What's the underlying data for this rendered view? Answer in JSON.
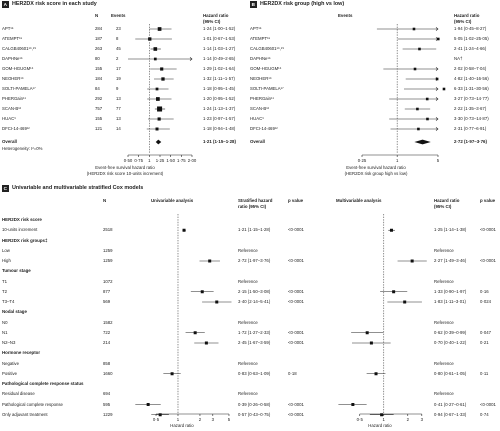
{
  "panelA": {
    "letter": "A",
    "title": "HER2DX risk score in each study",
    "col_n": "N",
    "col_events": "Events",
    "col_hr": "Hazard ratio",
    "col_ci": "(95% CI)",
    "rows": [
      {
        "study": "APT¹⁵",
        "n": "284",
        "events": "23",
        "hr_text": "1·24 (1·00–1·52)"
      },
      {
        "study": "ATEMPT¹⁵",
        "n": "187",
        "events": "8",
        "hr_text": "1·01 (0·67–1·53)"
      },
      {
        "study": "CALGB40601¹⁶,²⁹",
        "n": "263",
        "events": "45",
        "hr_text": "1·14 (1·03–1·27)"
      },
      {
        "study": "DAPHNe¹⁵",
        "n": "80",
        "events": "2",
        "hr_text": "1·14 (0·49–2·65)"
      },
      {
        "study": "GOM-HGUGM¹⁶",
        "n": "155",
        "events": "17",
        "hr_text": "1·29 (1·02–1·64)"
      },
      {
        "study": "NEOHER¹⁶",
        "n": "184",
        "events": "19",
        "hr_text": "1·32 (1·11–1·57)"
      },
      {
        "study": "SOLTI-PAMELA¹⁷",
        "n": "84",
        "events": "9",
        "hr_text": "1·18 (0·95–1·45)"
      },
      {
        "study": "PHERGain¹¹",
        "n": "292",
        "events": "13",
        "hr_text": "1·20 (0·95–1·52)"
      },
      {
        "study": "SCAN-B¹²",
        "n": "757",
        "events": "77",
        "hr_text": "1·24 (1·13–1·37)"
      },
      {
        "study": "HUAC⁹",
        "n": "155",
        "events": "13",
        "hr_text": "1·23 (0·97–1·57)"
      },
      {
        "study": "DFCI-14-469¹²",
        "n": "121",
        "events": "14",
        "hr_text": "1·18 (0·94–1·48)"
      }
    ],
    "overall_label": "Overall",
    "overall_hr_text": "1·21 (1·15–1·28)",
    "heterogeneity": "Heterogeneity: I²=0%",
    "xlabel_1": "Event-free survival hazard ratio",
    "xlabel_2": "(HER2DX risk score 10-units increment)"
  },
  "panelB": {
    "letter": "B",
    "title": "HER2DX risk group (high vs low)",
    "col_events": "Events",
    "col_hr": "Hazard ratio",
    "col_ci": "(95% CI)",
    "rows": [
      {
        "study": "APT¹⁵",
        "hr_text": "1·94 (0·45–8·27)"
      },
      {
        "study": "ATEMPT¹⁵",
        "hr_text": "5·05 (1·02–25·05)"
      },
      {
        "study": "CALGB40601¹⁶,²⁹",
        "hr_text": "2·41 (1·24–4·66)"
      },
      {
        "study": "DAPHNe¹⁵",
        "hr_text": "NA†"
      },
      {
        "study": "GOM-HGUGM¹⁶",
        "hr_text": "2·02 (0·58–7·04)"
      },
      {
        "study": "NEOHER¹⁶",
        "hr_text": "4·82 (1·40–16·56)"
      },
      {
        "study": "SOLTI-PAMELA¹⁷",
        "hr_text": "6·33 (1·31–30·56)"
      },
      {
        "study": "PHERGain¹¹",
        "hr_text": "3·27 (0·73–14·77)"
      },
      {
        "study": "SCAN-B¹²",
        "hr_text": "2·22 (1·35–3·67)"
      },
      {
        "study": "HUAC⁹",
        "hr_text": "3·30 (0·73–14·87)"
      },
      {
        "study": "DFCI-14-469¹²",
        "hr_text": "2·31 (0·77–6·91)"
      }
    ],
    "overall_label": "Overall",
    "overall_hr_text": "2·72 (1·97–3·76)",
    "xlabel_1": "Event-free survival hazard ratio",
    "xlabel_2": "(HER2DX risk group high vs low)"
  },
  "panelC": {
    "letter": "C",
    "title": "Univariable and multivariable stratified Cox models",
    "col_n": "N",
    "col_uni": "Univariable analysis",
    "col_shr1": "Stratified hazard",
    "col_shr2": "ratio (95% CI)",
    "col_p": "p value",
    "col_multi": "Multivariable analysis",
    "col_mhr1": "Hazard ratio",
    "col_mhr2": "(95% CI)",
    "col_mp": "p value",
    "rows": [
      {
        "kind": "section",
        "label": "HER2DX risk score"
      },
      {
        "kind": "row",
        "label": "10-units increment",
        "n": "2518",
        "uhr": "1·21 (1·15–1·28)",
        "up": "<0·0001",
        "mhr": "1·25 (1·14–1·38)",
        "mp": "<0·0001"
      },
      {
        "kind": "section",
        "label": "HER2DX risk groups‡"
      },
      {
        "kind": "row",
        "label": "Low",
        "n": "1259",
        "uhr": "Reference",
        "up": "",
        "mhr": "Reference",
        "mp": ""
      },
      {
        "kind": "row",
        "label": "High",
        "n": "1259",
        "uhr": "2·72 (1·97–3·76)",
        "up": "<0·0001",
        "mhr": "2·27 (1·49–3·46)",
        "mp": "<0·0001"
      },
      {
        "kind": "section",
        "label": "Tumour stage"
      },
      {
        "kind": "row",
        "label": "T1",
        "n": "1072",
        "uhr": "Reference",
        "up": "",
        "mhr": "Reference",
        "mp": ""
      },
      {
        "kind": "row",
        "label": "T2",
        "n": "877",
        "uhr": "2·15 (1·50–3·08)",
        "up": "<0·0001",
        "mhr": "1·33 (0·90–1·97)",
        "mp": "0·16"
      },
      {
        "kind": "row",
        "label": "T3–T4",
        "n": "569",
        "uhr": "3·40 (2·14–5·41)",
        "up": "<0·0001",
        "mhr": "1·83 (1·11–3·01)",
        "mp": "0·024"
      },
      {
        "kind": "section",
        "label": "Nodal stage"
      },
      {
        "kind": "row",
        "label": "N0",
        "n": "1582",
        "uhr": "Reference",
        "up": "",
        "mhr": "Reference",
        "mp": ""
      },
      {
        "kind": "row",
        "label": "N1",
        "n": "722",
        "uhr": "1·72 (1·27–2·33)",
        "up": "<0·0001",
        "mhr": "0·62 (0·39–0·99)",
        "mp": "0·047"
      },
      {
        "kind": "row",
        "label": "N2–N3",
        "n": "214",
        "uhr": "2·45 (1·67–3·59)",
        "up": "<0·0001",
        "mhr": "0·70 (0·40–1·22)",
        "mp": "0·21"
      },
      {
        "kind": "section",
        "label": "Hormone receptor"
      },
      {
        "kind": "row",
        "label": "Negative",
        "n": "858",
        "uhr": "Reference",
        "up": "",
        "mhr": "Reference",
        "mp": ""
      },
      {
        "kind": "row",
        "label": "Positive",
        "n": "1660",
        "uhr": "0·83 (0·63–1·09)",
        "up": "0·18",
        "mhr": "0·80 (0·61–1·05)",
        "mp": "0·11"
      },
      {
        "kind": "section",
        "label": "Pathological complete response status"
      },
      {
        "kind": "row",
        "label": "Residual disease",
        "n": "694",
        "uhr": "Reference",
        "up": "",
        "mhr": "Reference",
        "mp": ""
      },
      {
        "kind": "row",
        "label": "Pathological complete response",
        "n": "595",
        "uhr": "0·39 (0·26–0·58)",
        "up": "<0·0001",
        "mhr": "0·41 (0·27–0·61)",
        "mp": "<0·0001"
      },
      {
        "kind": "row",
        "label": "Only adjuvant treatment",
        "n": "1229",
        "uhr": "0·57 (0·43–0·75)",
        "up": "<0·0001",
        "mhr": "0·94 (0·67–1·33)",
        "mp": "0·74"
      }
    ],
    "xlabel_uni": "Hazard ratio",
    "xlabel_multi": "Hazard ratio"
  },
  "chart_data": [
    {
      "type": "scatter",
      "subtype": "forest",
      "panel": "A",
      "title": "HER2DX risk score in each study",
      "xlabel": "Event-free survival hazard ratio (HER2DX risk score 10-units increment)",
      "xlim": [
        0.5,
        2.0
      ],
      "xticks": [
        "0·50",
        "0·75",
        "1",
        "1·25",
        "1·50",
        "1·75",
        "2·00"
      ],
      "tick_values": [
        0.5,
        0.75,
        1.0,
        1.25,
        1.5,
        1.75,
        2.0
      ],
      "reference_line": 1.0,
      "studies": [
        {
          "hr": 1.24,
          "lo": 1.0,
          "hi": 1.52,
          "n": 284
        },
        {
          "hr": 1.01,
          "lo": 0.67,
          "hi": 1.53,
          "n": 187
        },
        {
          "hr": 1.14,
          "lo": 1.03,
          "hi": 1.27,
          "n": 263
        },
        {
          "hr": 1.14,
          "lo": 0.49,
          "hi": 2.65,
          "n": 80
        },
        {
          "hr": 1.29,
          "lo": 1.02,
          "hi": 1.64,
          "n": 155
        },
        {
          "hr": 1.32,
          "lo": 1.11,
          "hi": 1.57,
          "n": 184
        },
        {
          "hr": 1.18,
          "lo": 0.95,
          "hi": 1.45,
          "n": 84
        },
        {
          "hr": 1.2,
          "lo": 0.95,
          "hi": 1.52,
          "n": 292
        },
        {
          "hr": 1.24,
          "lo": 1.13,
          "hi": 1.37,
          "n": 757
        },
        {
          "hr": 1.23,
          "lo": 0.97,
          "hi": 1.57,
          "n": 155
        },
        {
          "hr": 1.18,
          "lo": 0.94,
          "hi": 1.48,
          "n": 121
        }
      ],
      "overall": {
        "hr": 1.21,
        "lo": 1.15,
        "hi": 1.28
      }
    },
    {
      "type": "scatter",
      "subtype": "forest",
      "panel": "B",
      "title": "HER2DX risk group (high vs low)",
      "xlabel": "Event-free survival hazard ratio (HER2DX risk group high vs low)",
      "log_scale": true,
      "xlim": [
        0.25,
        5.0
      ],
      "xticks": [
        "0·25",
        "1",
        "5"
      ],
      "tick_values": [
        0.25,
        1.0,
        5.0
      ],
      "reference_line": 1.0,
      "studies": [
        {
          "hr": 1.94,
          "lo": 0.45,
          "hi": 8.27
        },
        {
          "hr": 5.05,
          "lo": 1.02,
          "hi": 25.05
        },
        {
          "hr": 2.41,
          "lo": 1.24,
          "hi": 4.66
        },
        {
          "hr": null,
          "lo": null,
          "hi": null
        },
        {
          "hr": 2.02,
          "lo": 0.58,
          "hi": 7.04
        },
        {
          "hr": 4.82,
          "lo": 1.4,
          "hi": 16.56
        },
        {
          "hr": 6.33,
          "lo": 1.31,
          "hi": 30.56
        },
        {
          "hr": 3.27,
          "lo": 0.73,
          "hi": 14.77
        },
        {
          "hr": 2.22,
          "lo": 1.35,
          "hi": 3.67
        },
        {
          "hr": 3.3,
          "lo": 0.73,
          "hi": 14.87
        },
        {
          "hr": 2.31,
          "lo": 0.77,
          "hi": 6.91
        }
      ],
      "overall": {
        "hr": 2.72,
        "lo": 1.97,
        "hi": 3.76
      }
    },
    {
      "type": "scatter",
      "subtype": "forest",
      "panel": "C-univariable",
      "xlabel": "Hazard ratio",
      "log_scale": true,
      "xlim": [
        0.2,
        5.5
      ],
      "xticks": [
        "0·5",
        "1",
        "2",
        "3",
        "5"
      ],
      "tick_values": [
        0.5,
        1,
        2,
        3,
        5
      ],
      "reference_line": 1.0,
      "points": [
        {
          "row": 1,
          "hr": 1.21,
          "lo": 1.15,
          "hi": 1.28
        },
        {
          "row": 3,
          "ref": true
        },
        {
          "row": 4,
          "hr": 2.72,
          "lo": 1.97,
          "hi": 3.76
        },
        {
          "row": 6,
          "ref": true
        },
        {
          "row": 7,
          "hr": 2.15,
          "lo": 1.5,
          "hi": 3.08
        },
        {
          "row": 8,
          "hr": 3.4,
          "lo": 2.14,
          "hi": 5.41
        },
        {
          "row": 10,
          "ref": true
        },
        {
          "row": 11,
          "hr": 1.72,
          "lo": 1.27,
          "hi": 2.33
        },
        {
          "row": 12,
          "hr": 2.45,
          "lo": 1.67,
          "hi": 3.59
        },
        {
          "row": 14,
          "ref": true
        },
        {
          "row": 15,
          "hr": 0.83,
          "lo": 0.63,
          "hi": 1.09
        },
        {
          "row": 17,
          "ref": true
        },
        {
          "row": 18,
          "hr": 0.39,
          "lo": 0.26,
          "hi": 0.58
        },
        {
          "row": 19,
          "hr": 0.57,
          "lo": 0.43,
          "hi": 0.75
        }
      ]
    },
    {
      "type": "scatter",
      "subtype": "forest",
      "panel": "C-multivariable",
      "xlabel": "Hazard ratio",
      "log_scale": true,
      "xlim": [
        0.2,
        3.8
      ],
      "xticks": [
        "0·5",
        "1",
        "2",
        "3"
      ],
      "tick_values": [
        0.5,
        1,
        2,
        3
      ],
      "reference_line": 1.0,
      "points": [
        {
          "row": 1,
          "hr": 1.25,
          "lo": 1.14,
          "hi": 1.38
        },
        {
          "row": 3,
          "ref": true
        },
        {
          "row": 4,
          "hr": 2.27,
          "lo": 1.49,
          "hi": 3.46
        },
        {
          "row": 6,
          "ref": true
        },
        {
          "row": 7,
          "hr": 1.33,
          "lo": 0.9,
          "hi": 1.97
        },
        {
          "row": 8,
          "hr": 1.83,
          "lo": 1.11,
          "hi": 3.01
        },
        {
          "row": 10,
          "ref": true
        },
        {
          "row": 11,
          "hr": 0.62,
          "lo": 0.39,
          "hi": 0.99
        },
        {
          "row": 12,
          "hr": 0.7,
          "lo": 0.4,
          "hi": 1.22
        },
        {
          "row": 14,
          "ref": true
        },
        {
          "row": 15,
          "hr": 0.8,
          "lo": 0.61,
          "hi": 1.05
        },
        {
          "row": 17,
          "ref": true
        },
        {
          "row": 18,
          "hr": 0.41,
          "lo": 0.27,
          "hi": 0.61
        },
        {
          "row": 19,
          "hr": 0.94,
          "lo": 0.67,
          "hi": 1.33
        }
      ]
    }
  ]
}
